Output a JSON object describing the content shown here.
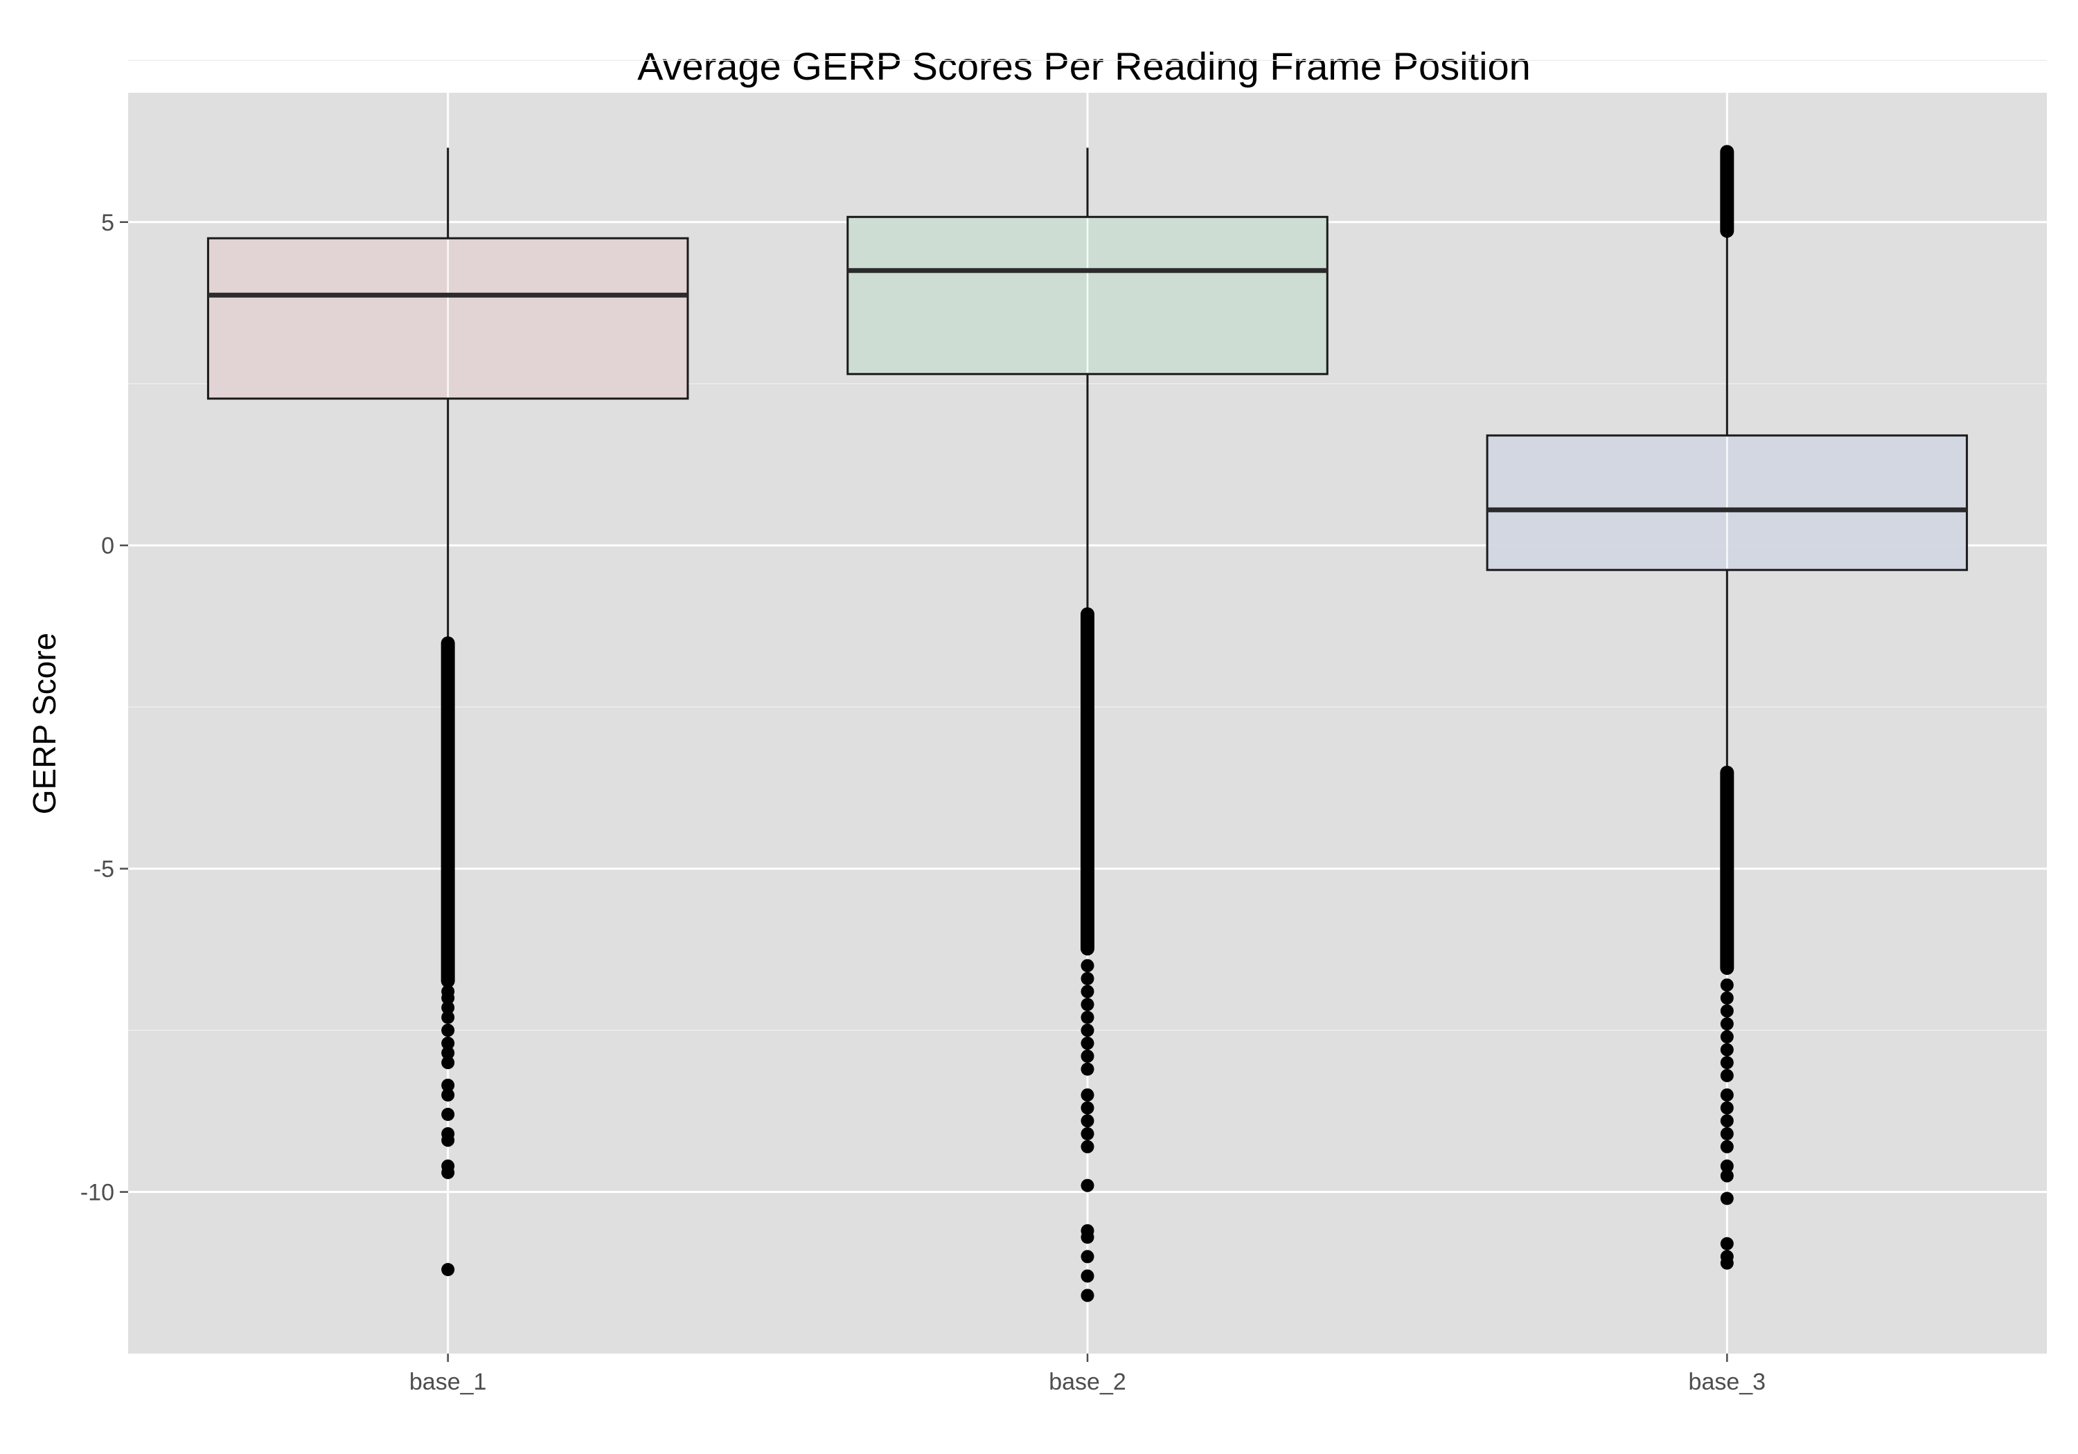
{
  "chart_data": {
    "type": "box",
    "title": "Average GERP Scores Per Reading Frame Position",
    "xlabel": "",
    "ylabel": "GERP Score",
    "ylim": [
      -12.5,
      7.0
    ],
    "y_ticks": [
      {
        "value": 5,
        "label": "5"
      },
      {
        "value": 0,
        "label": "0"
      },
      {
        "value": -5,
        "label": "-5"
      },
      {
        "value": -10,
        "label": "-10"
      }
    ],
    "y_minor_ticks": [
      7.5,
      2.5,
      -2.5,
      -7.5
    ],
    "grid": true,
    "legend": "none",
    "colors": {
      "panel": "#dfdfdf",
      "grid": "#ffffff",
      "box_outline": "#1a1a1a",
      "median": "#2b2b2b",
      "outlier": "#000000"
    },
    "categories": [
      "base_1",
      "base_2",
      "base_3"
    ],
    "boxes": [
      {
        "category": "base_1",
        "fill": "#e2d1d2",
        "whisker_high": 6.15,
        "q3": 4.75,
        "median": 3.87,
        "q1": 2.27,
        "whisker_low": -1.45,
        "outliers_dense": [
          [
            -1.45,
            -6.8
          ]
        ],
        "outliers": [
          -6.9,
          -7.0,
          -7.15,
          -7.3,
          -7.5,
          -7.7,
          -7.85,
          -8.0,
          -8.35,
          -8.5,
          -8.8,
          -9.1,
          -9.2,
          -9.6,
          -9.7,
          -11.2
        ]
      },
      {
        "category": "base_2",
        "fill": "#cbdcd1",
        "whisker_high": 6.15,
        "q3": 5.08,
        "median": 4.25,
        "q1": 2.65,
        "whisker_low": -1.0,
        "outliers_dense": [
          [
            -1.0,
            -6.3
          ]
        ],
        "outliers": [
          -6.5,
          -6.7,
          -6.9,
          -7.1,
          -7.3,
          -7.5,
          -7.7,
          -7.9,
          -8.1,
          -8.5,
          -8.7,
          -8.9,
          -9.1,
          -9.3,
          -9.9,
          -10.6,
          -10.7,
          -11.0,
          -11.3,
          -11.6
        ]
      },
      {
        "category": "base_3",
        "fill": "#d0d6e2",
        "whisker_high": 4.8,
        "q3": 1.7,
        "median": 0.55,
        "q1": -0.38,
        "whisker_low": -3.45,
        "outliers_dense": [
          [
            4.8,
            6.15
          ],
          [
            -3.45,
            -6.6
          ]
        ],
        "outliers": [
          -6.8,
          -7.0,
          -7.2,
          -7.4,
          -7.6,
          -7.8,
          -8.0,
          -8.2,
          -8.5,
          -8.7,
          -8.9,
          -9.1,
          -9.3,
          -9.6,
          -9.75,
          -10.1,
          -10.8,
          -11.0,
          -11.1
        ]
      }
    ]
  }
}
